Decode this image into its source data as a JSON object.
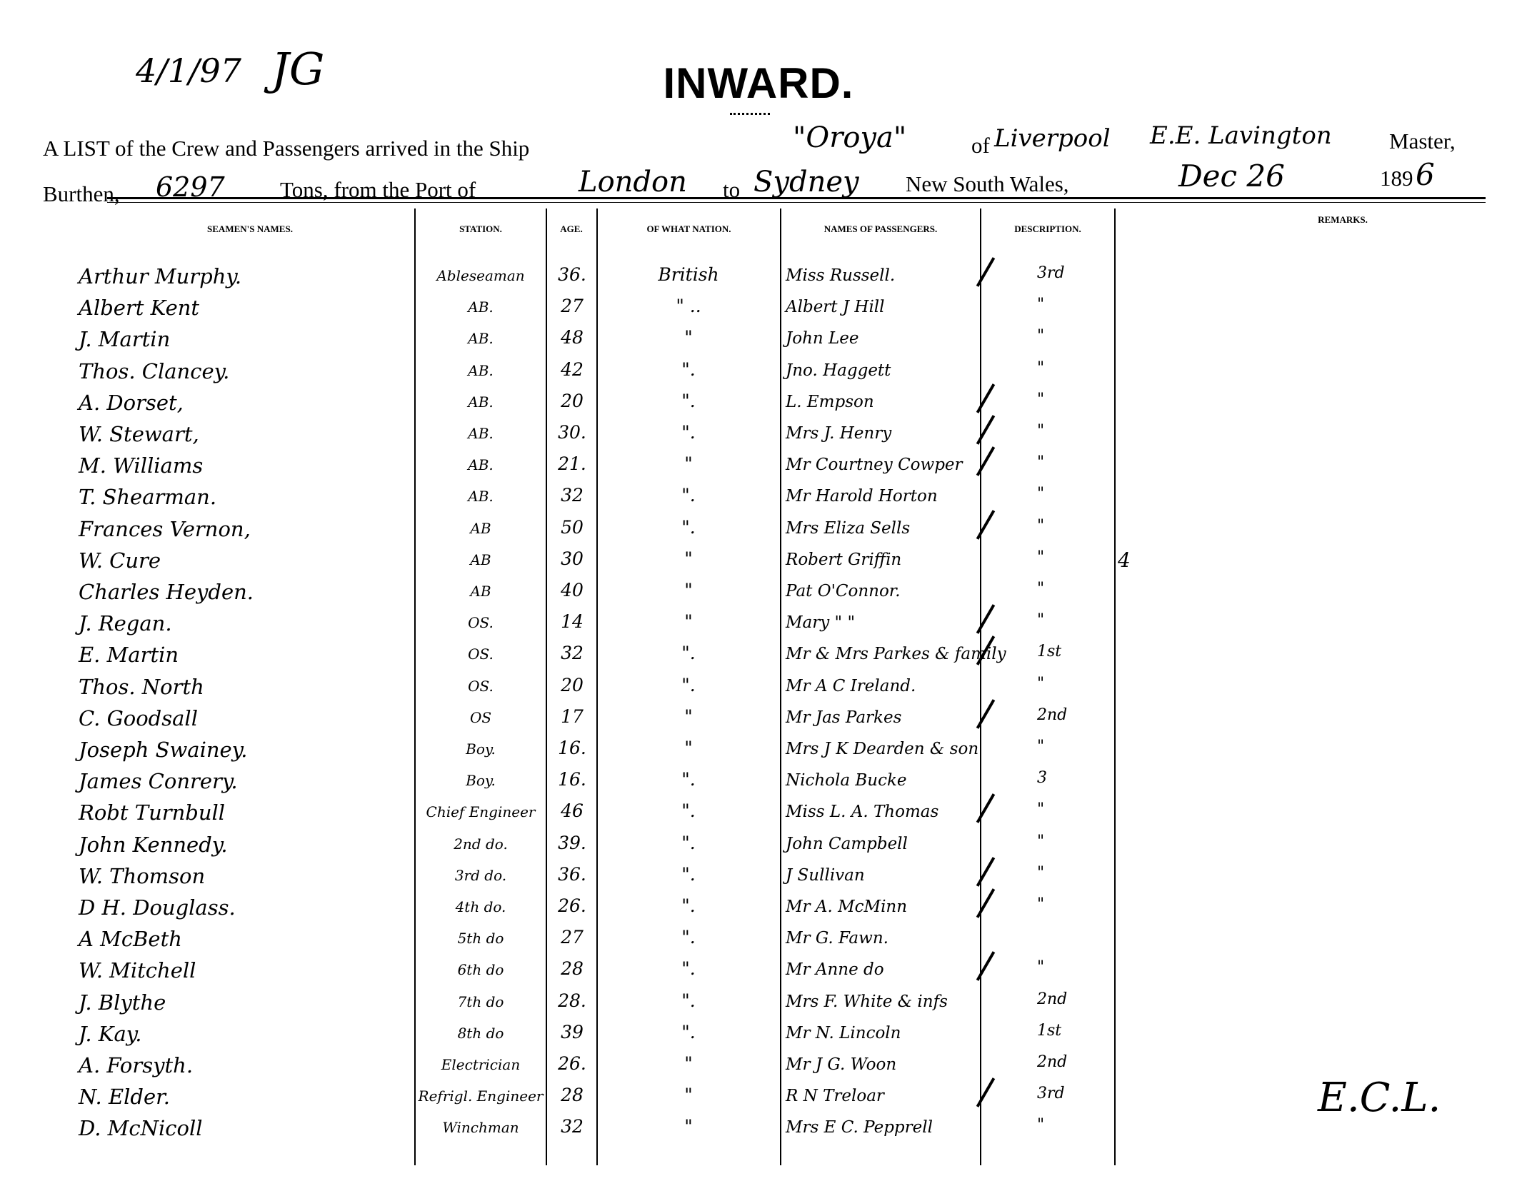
{
  "document": {
    "annotation_date": "4/1/97",
    "annotation_initials": "JG",
    "title": "INWARD.",
    "line1": {
      "prefix": "A LIST of the Crew and Passengers arrived in the Ship",
      "ship": "\"Oroya\"",
      "of_label": "of",
      "port_of_registry": "Liverpool",
      "master_name": "E.E. Lavington",
      "master_label": "Master,"
    },
    "line2": {
      "burthen_label": "Burthen,",
      "burthen": "6297",
      "tons_label": "Tons, from the Port of",
      "from_port": "London",
      "to_label": "to",
      "to_port": "Sydney",
      "nsw_label": "New South Wales,",
      "date": "Dec 26",
      "year_printed": "189",
      "year_hand": "6"
    },
    "columns": {
      "seamen": "Seamen's Names.",
      "station": "Station.",
      "age": "Age.",
      "nation": "Of what Nation.",
      "passengers": "Names of Passengers.",
      "description": "Description.",
      "remarks": "Remarks."
    },
    "rows": [
      {
        "seaman": "Arthur Murphy.",
        "station": "Ableseaman",
        "age": "36.",
        "nation": "British",
        "passenger": "Miss Russell.",
        "desc": "3rd",
        "tick": true
      },
      {
        "seaman": "Albert Kent",
        "station": "AB.",
        "age": "27",
        "nation": "\" ..",
        "passenger": "Albert J Hill",
        "desc": "\""
      },
      {
        "seaman": "J. Martin",
        "station": "AB.",
        "age": "48",
        "nation": "\"",
        "passenger": "John Lee",
        "desc": "\""
      },
      {
        "seaman": "Thos. Clancey.",
        "station": "AB.",
        "age": "42",
        "nation": "\".",
        "passenger": "Jno. Haggett",
        "desc": "\""
      },
      {
        "seaman": "A. Dorset,",
        "station": "AB.",
        "age": "20",
        "nation": "\".",
        "passenger": "L. Empson",
        "desc": "\"",
        "tick": true
      },
      {
        "seaman": "W. Stewart,",
        "station": "AB.",
        "age": "30.",
        "nation": "\".",
        "passenger": "Mrs J. Henry",
        "desc": "\"",
        "tick": true
      },
      {
        "seaman": "M. Williams",
        "station": "AB.",
        "age": "21.",
        "nation": "\"",
        "passenger": "Mr Courtney Cowper",
        "desc": "\"",
        "tick": true
      },
      {
        "seaman": "T. Shearman.",
        "station": "AB.",
        "age": "32",
        "nation": "\".",
        "passenger": "Mr Harold Horton",
        "desc": "\""
      },
      {
        "seaman": "Frances Vernon,",
        "station": "AB",
        "age": "50",
        "nation": "\".",
        "passenger": "Mrs Eliza Sells",
        "desc": "\"",
        "tick": true
      },
      {
        "seaman": "W. Cure",
        "station": "AB",
        "age": "30",
        "nation": "\"",
        "passenger": "Robert Griffin",
        "desc": "\"",
        "remark": "4"
      },
      {
        "seaman": "Charles Heyden.",
        "station": "AB",
        "age": "40",
        "nation": "\"",
        "passenger": "Pat O'Connor.",
        "desc": "\""
      },
      {
        "seaman": "J. Regan.",
        "station": "OS.",
        "age": "14",
        "nation": "\"",
        "passenger": "Mary \" \"",
        "desc": "\"",
        "tick": true
      },
      {
        "seaman": "E. Martin",
        "station": "OS.",
        "age": "32",
        "nation": "\".",
        "passenger": "Mr & Mrs Parkes & family",
        "desc": "1st",
        "tick": true
      },
      {
        "seaman": "Thos. North",
        "station": "OS.",
        "age": "20",
        "nation": "\".",
        "passenger": "Mr A C Ireland.",
        "desc": "\""
      },
      {
        "seaman": "C. Goodsall",
        "station": "OS",
        "age": "17",
        "nation": "\"",
        "passenger": "Mr Jas Parkes",
        "desc": "2nd",
        "tick": true
      },
      {
        "seaman": "Joseph Swainey.",
        "station": "Boy.",
        "age": "16.",
        "nation": "\"",
        "passenger": "Mrs J K Dearden & son",
        "desc": "\""
      },
      {
        "seaman": "James Conrery.",
        "station": "Boy.",
        "age": "16.",
        "nation": "\".",
        "passenger": "Nichola Bucke",
        "desc": "3"
      },
      {
        "seaman": "Robt Turnbull",
        "station": "Chief Engineer",
        "age": "46",
        "nation": "\".",
        "passenger": "Miss L. A. Thomas",
        "desc": "\"",
        "tick": true
      },
      {
        "seaman": "John Kennedy.",
        "station": "2nd do.",
        "age": "39.",
        "nation": "\".",
        "passenger": "John Campbell",
        "desc": "\""
      },
      {
        "seaman": "W. Thomson",
        "station": "3rd do.",
        "age": "36.",
        "nation": "\".",
        "passenger": "J Sullivan",
        "desc": "\"",
        "tick": true
      },
      {
        "seaman": "D H. Douglass.",
        "station": "4th do.",
        "age": "26.",
        "nation": "\".",
        "passenger": "Mr A. McMinn",
        "desc": "\"",
        "tick": true
      },
      {
        "seaman": "A McBeth",
        "station": "5th do",
        "age": "27",
        "nation": "\".",
        "passenger": "Mr G. Fawn.",
        "desc": ""
      },
      {
        "seaman": "W. Mitchell",
        "station": "6th do",
        "age": "28",
        "nation": "\".",
        "passenger": "Mr Anne do",
        "desc": "\"",
        "tick": true
      },
      {
        "seaman": "J. Blythe",
        "station": "7th do",
        "age": "28.",
        "nation": "\".",
        "passenger": "Mrs F. White & infs",
        "desc": "2nd"
      },
      {
        "seaman": "J. Kay.",
        "station": "8th do",
        "age": "39",
        "nation": "\".",
        "passenger": "Mr N. Lincoln",
        "desc": "1st"
      },
      {
        "seaman": "A. Forsyth.",
        "station": "Electrician",
        "age": "26.",
        "nation": "\"",
        "passenger": "Mr J G. Woon",
        "desc": "2nd"
      },
      {
        "seaman": "N. Elder.",
        "station": "Refrigl. Engineer",
        "age": "28",
        "nation": "\"",
        "passenger": "R N Treloar",
        "desc": "3rd",
        "tick": true
      },
      {
        "seaman": "D. McNicoll",
        "station": "Winchman",
        "age": "32",
        "nation": "\"",
        "passenger": "Mrs E C. Pepprell",
        "desc": "\""
      }
    ],
    "signature_initials": "E.C.L."
  }
}
